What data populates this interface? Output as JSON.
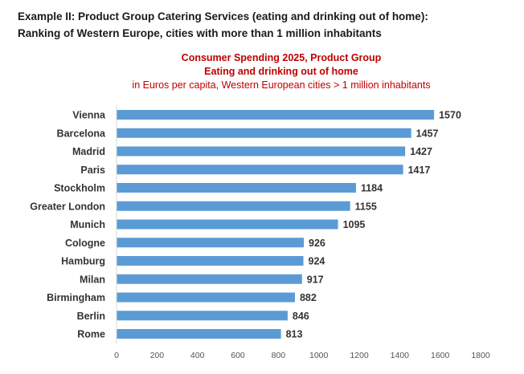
{
  "heading": {
    "line1": "Example II: Product Group Catering Services (eating and drinking out of home):",
    "line2": "Ranking of Western Europe, cities with more than 1 million inhabitants"
  },
  "chart_data": {
    "type": "bar",
    "orientation": "horizontal",
    "title": "Consumer Spending 2025, Product Group",
    "title_line2": "Eating and drinking out of home",
    "subtitle": "in Euros per capita, Western European cities > 1 million inhabitants",
    "title_color": "#c00000",
    "bar_color": "#5b9bd5",
    "categories": [
      "Vienna",
      "Barcelona",
      "Madrid",
      "Paris",
      "Stockholm",
      "Greater London",
      "Munich",
      "Cologne",
      "Hamburg",
      "Milan",
      "Birmingham",
      "Berlin",
      "Rome"
    ],
    "values": [
      1570,
      1457,
      1427,
      1417,
      1184,
      1155,
      1095,
      926,
      924,
      917,
      882,
      846,
      813
    ],
    "data_labels": [
      "1570",
      "1457",
      "1427",
      "1417",
      "1184",
      "1155",
      "1095",
      "926",
      "924",
      "917",
      "882",
      "846",
      "813"
    ],
    "xlim": [
      0,
      1800
    ],
    "xticks": [
      0,
      200,
      400,
      600,
      800,
      1000,
      1200,
      1400,
      1600,
      1800
    ],
    "xtick_labels": [
      "0",
      "200",
      "400",
      "600",
      "800",
      "1000",
      "1200",
      "1400",
      "1600",
      "1800"
    ],
    "xlabel": "",
    "ylabel": "",
    "grid": false,
    "legend": false
  }
}
